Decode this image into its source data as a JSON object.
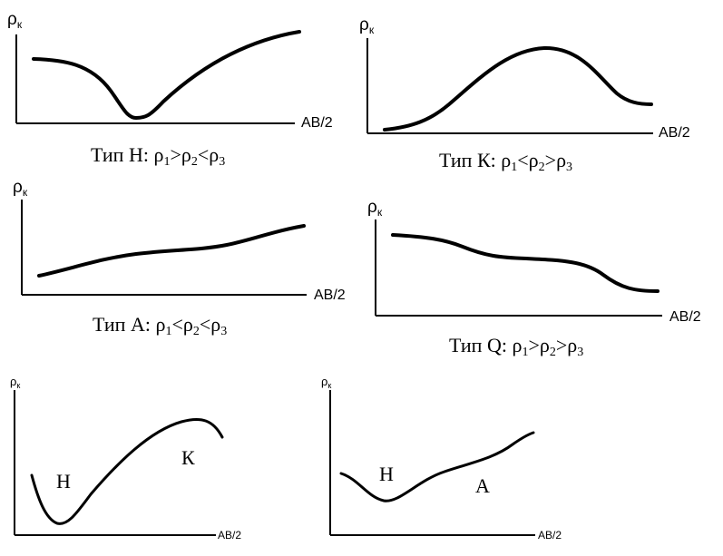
{
  "axis_y_label": "ρ",
  "axis_y_sub": "к",
  "axis_x_label": "АВ/2",
  "panels": [
    {
      "type_word": "Тип",
      "type_letter": "Н",
      "formula": [
        "ρ",
        "1",
        ">",
        "ρ",
        "2",
        "<",
        "ρ",
        "3"
      ]
    },
    {
      "type_word": "Тип",
      "type_letter": "К",
      "formula": [
        "ρ",
        "1",
        "<",
        "ρ",
        "2",
        ">",
        "ρ",
        "3"
      ]
    },
    {
      "type_word": "Тип",
      "type_letter": "А",
      "formula": [
        "ρ",
        "1",
        "<",
        "ρ",
        "2",
        "<",
        "ρ",
        "3"
      ]
    },
    {
      "type_word": "Тип",
      "type_letter": "Q",
      "formula": [
        "ρ",
        "1",
        ">",
        "ρ",
        "2",
        ">",
        "ρ",
        "3"
      ]
    }
  ],
  "combined": [
    {
      "label_left": "Н",
      "label_right": "К"
    },
    {
      "label_left": "Н",
      "label_right": "А"
    }
  ]
}
